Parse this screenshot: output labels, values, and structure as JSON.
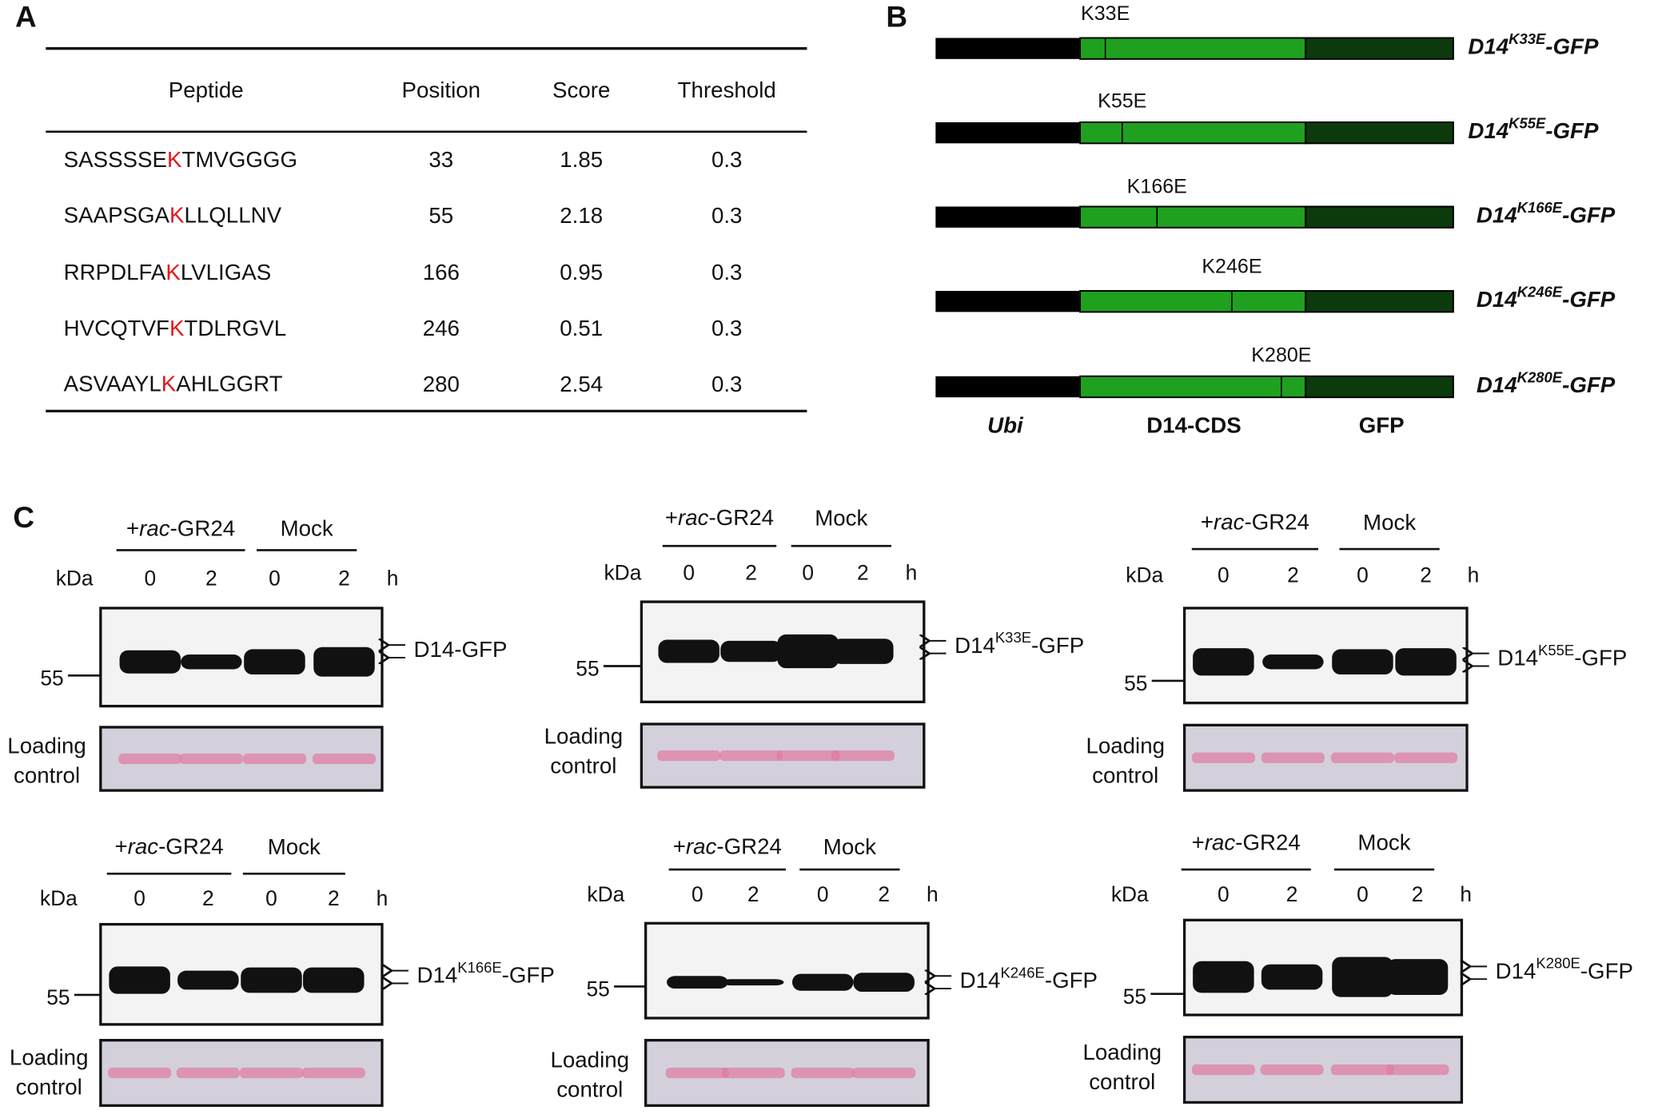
{
  "panel_a": {
    "label": "A",
    "table": {
      "headers": [
        "Peptide",
        "Position",
        "Score",
        "Threshold"
      ],
      "rows": [
        [
          {
            "before": "SASSSSE",
            "site": "K",
            "after": "TMVGGGG"
          },
          33,
          1.85,
          0.3
        ],
        [
          {
            "before": "SAAPSGA",
            "site": "K",
            "after": "LLQLLNV"
          },
          55,
          2.18,
          0.3
        ],
        [
          {
            "before": "RRPDLFA",
            "site": "K",
            "after": "LVLIGAS"
          },
          166,
          0.95,
          0.3
        ],
        [
          {
            "before": "HVCQTVF",
            "site": "K",
            "after": "TDLRGVL"
          },
          246,
          0.51,
          0.3
        ],
        [
          {
            "before": "ASVAAYL",
            "site": "K",
            "after": "AHLGGRT"
          },
          280,
          2.54,
          0.3
        ]
      ]
    }
  },
  "panel_b": {
    "label": "B",
    "constructs": [
      {
        "mutation": "K33E",
        "name": "D14",
        "superscript": "K33E",
        "suffix": "-GFP"
      },
      {
        "mutation": "K55E",
        "name": "D14",
        "superscript": "K55E",
        "suffix": "-GFP"
      },
      {
        "mutation": "K166E",
        "name": "D14",
        "superscript": "K166E",
        "suffix": "-GFP"
      },
      {
        "mutation": "K246E",
        "name": "D14",
        "superscript": "K246E",
        "suffix": "-GFP"
      },
      {
        "mutation": "K280E",
        "name": "D14",
        "superscript": "K280E",
        "suffix": "-GFP"
      }
    ],
    "segments": [
      "Ubi",
      "D14-CDS",
      "GFP"
    ]
  },
  "panel_c": {
    "label": "C",
    "blots": [
      {
        "treatment": [
          "+",
          "rac",
          "-GR24"
        ],
        "control": "Mock",
        "unit": "kDa",
        "times": [
          0,
          2,
          0,
          2
        ],
        "time_unit": "h",
        "marker": 55,
        "protein": {
          "name": "D14-GFP"
        },
        "loading": [
          "Loading",
          "control"
        ]
      },
      {
        "treatment": [
          "+",
          "rac",
          "-GR24"
        ],
        "control": "Mock",
        "unit": "kDa",
        "times": [
          0,
          2,
          0,
          2
        ],
        "time_unit": "h",
        "marker": 55,
        "protein": {
          "name": "D14",
          "superscript": "K33E",
          "suffix": "-GFP"
        },
        "loading": [
          "Loading",
          "control"
        ]
      },
      {
        "treatment": [
          "+",
          "rac",
          "-GR24"
        ],
        "control": "Mock",
        "unit": "kDa",
        "times": [
          0,
          2,
          0,
          2
        ],
        "time_unit": "h",
        "marker": 55,
        "protein": {
          "name": "D14",
          "superscript": "K55E",
          "suffix": "-GFP"
        },
        "loading": [
          "Loading",
          "control"
        ]
      },
      {
        "treatment": [
          "+",
          "rac",
          "-GR24"
        ],
        "control": "Mock",
        "unit": "kDa",
        "times": [
          0,
          2,
          0,
          2
        ],
        "time_unit": "h",
        "marker": 55,
        "protein": {
          "name": "D14",
          "superscript": "K166E",
          "suffix": "-GFP"
        },
        "loading": [
          "Loading",
          "control"
        ]
      },
      {
        "treatment": [
          "+",
          "rac",
          "-GR24"
        ],
        "control": "Mock",
        "unit": "kDa",
        "times": [
          0,
          2,
          0,
          2
        ],
        "time_unit": "h",
        "marker": 55,
        "protein": {
          "name": "D14",
          "superscript": "K246E",
          "suffix": "-GFP"
        },
        "loading": [
          "Loading",
          "control"
        ]
      },
      {
        "treatment": [
          "+",
          "rac",
          "-GR24"
        ],
        "control": "Mock",
        "unit": "kDa",
        "times": [
          0,
          2,
          0,
          2
        ],
        "time_unit": "h",
        "marker": 55,
        "protein": {
          "name": "D14",
          "superscript": "K280E",
          "suffix": "-GFP"
        },
        "loading": [
          "Loading",
          "control"
        ]
      }
    ]
  }
}
